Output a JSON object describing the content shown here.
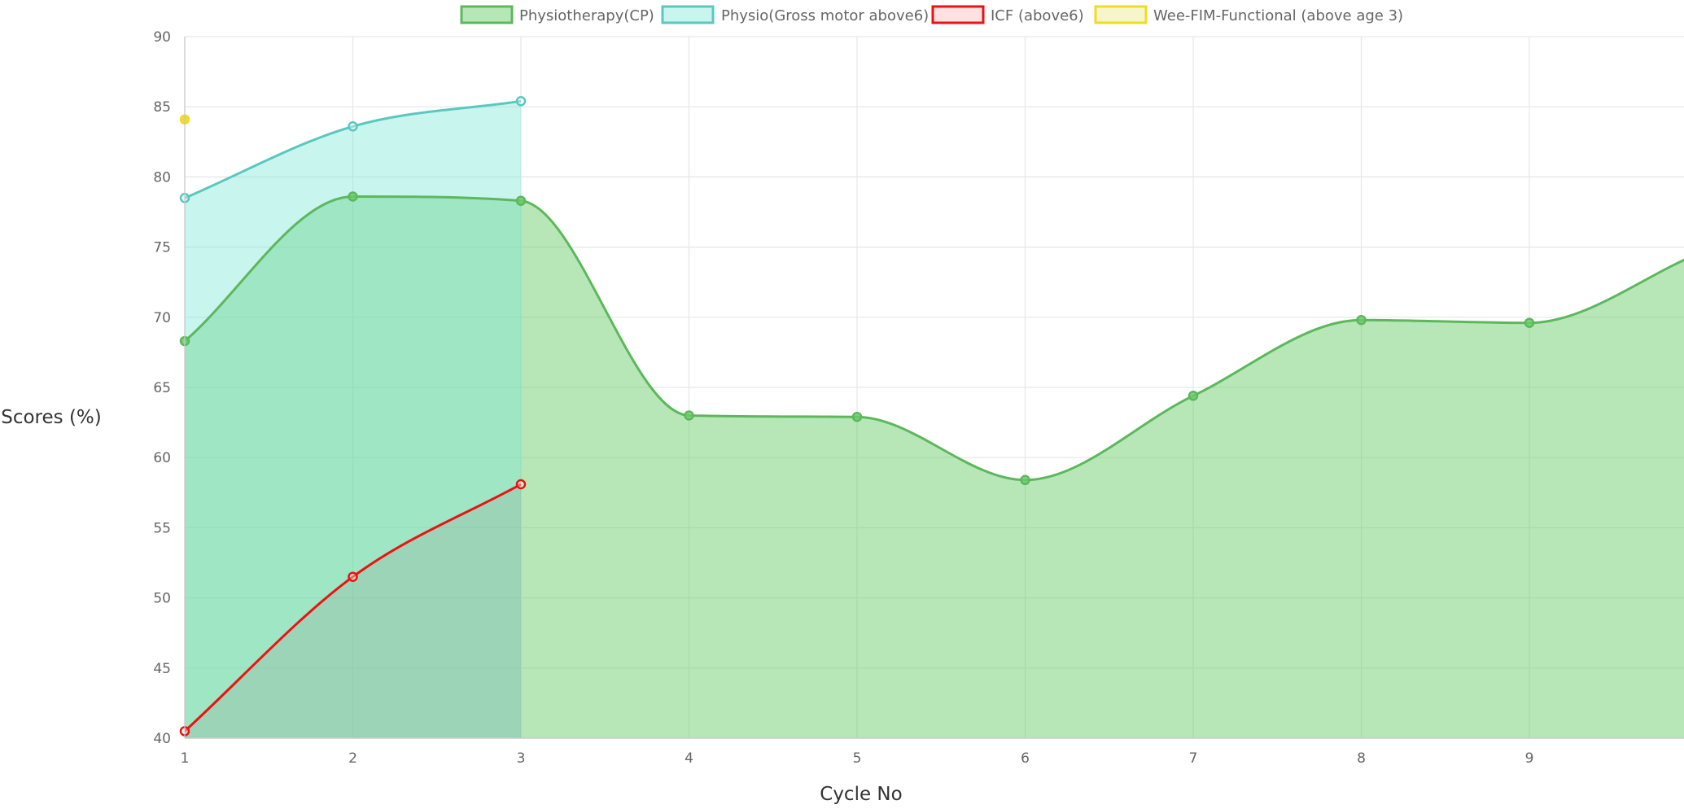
{
  "chart_data": {
    "type": "area",
    "xlabel": "Cycle No",
    "ylabel": "Scores (%)",
    "x_ticks": [
      "1",
      "2",
      "3",
      "4",
      "5",
      "6",
      "7",
      "8",
      "9"
    ],
    "y_ticks": [
      40,
      45,
      50,
      55,
      60,
      65,
      70,
      75,
      80,
      85,
      90
    ],
    "xlim": [
      1,
      9.9
    ],
    "ylim": [
      40,
      90
    ],
    "grid": true,
    "legend_position": "top",
    "series": [
      {
        "name": "Physiotherapy(CP)",
        "color": "#5cb85c",
        "fill": "rgba(102, 204, 102, 0.47)",
        "x": [
          1,
          2,
          3,
          4,
          5,
          6,
          7,
          8,
          9,
          10
        ],
        "values": [
          68.3,
          78.6,
          78.3,
          63.0,
          62.9,
          58.4,
          64.4,
          69.8,
          69.6,
          74.5
        ],
        "filled": true
      },
      {
        "name": "Physio(Gross motor above6)",
        "color": "#5ac8c0",
        "fill": "rgba(120, 230, 215, 0.40)",
        "x": [
          1,
          2,
          3
        ],
        "values": [
          78.5,
          83.6,
          85.4
        ],
        "filled": true
      },
      {
        "name": "ICF (above6)",
        "color": "#ee1111",
        "fill": "rgba(255, 120, 120, 0.22)",
        "x": [
          1,
          2,
          3
        ],
        "values": [
          40.5,
          51.5,
          58.1
        ],
        "filled": false
      },
      {
        "name": "Wee-FIM-Functional (above age 3)",
        "color": "#eedd22",
        "fill": "rgba(238, 232, 140, 0.45)",
        "x": [
          1
        ],
        "values": [
          84.1
        ],
        "filled": false
      }
    ]
  }
}
